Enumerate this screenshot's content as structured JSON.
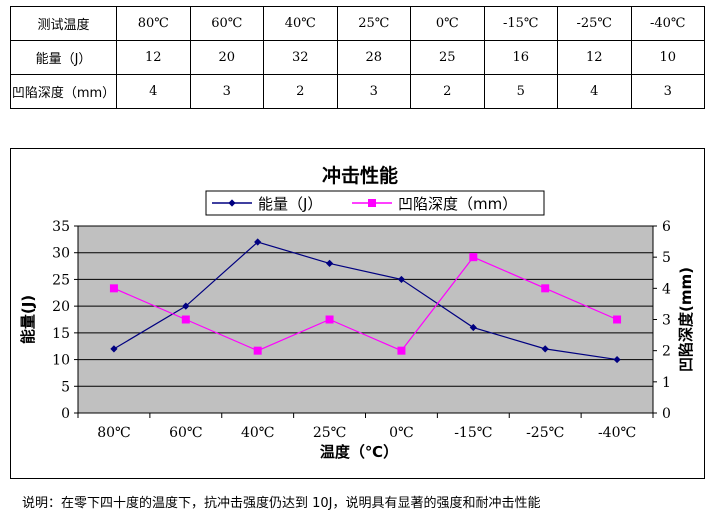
{
  "table": {
    "header": [
      "测试温度",
      "80℃",
      "60℃",
      "40℃",
      "25℃",
      "0℃",
      "-15℃",
      "-25℃",
      "-40℃"
    ],
    "rows": [
      [
        "能量（J）",
        "12",
        "20",
        "32",
        "28",
        "25",
        "16",
        "12",
        "10"
      ],
      [
        "凹陷深度（mm）",
        "4",
        "3",
        "2",
        "3",
        "2",
        "5",
        "4",
        "3"
      ]
    ]
  },
  "chart_data": {
    "type": "line",
    "title": "冲击性能",
    "xlabel": "温度（℃）",
    "ylabel_left": "能量(J)",
    "ylabel_right": "凹陷深度(mm)",
    "categories": [
      "80℃",
      "60℃",
      "40℃",
      "25℃",
      "0℃",
      "-15℃",
      "-25℃",
      "-40℃"
    ],
    "y_left": {
      "min": 0,
      "max": 35,
      "ticks": [
        "0",
        "5",
        "10",
        "15",
        "20",
        "25",
        "30",
        "35"
      ]
    },
    "y_right": {
      "min": 0,
      "max": 6,
      "ticks": [
        "0",
        "1",
        "2",
        "3",
        "4",
        "5",
        "6"
      ]
    },
    "grid": true,
    "legend_position": "top",
    "plot_background": "#c0c0c0",
    "series": [
      {
        "name": "能量（J）",
        "axis": "left",
        "color": "#000080",
        "marker": "diamond",
        "values": [
          12,
          20,
          32,
          28,
          25,
          16,
          12,
          10
        ]
      },
      {
        "name": "凹陷深度（mm）",
        "axis": "right",
        "color": "#ff00ff",
        "marker": "square",
        "values": [
          4,
          3,
          2,
          3,
          2,
          5,
          4,
          3
        ]
      }
    ]
  },
  "note": "说明：在零下四十度的温度下，抗冲击强度仍达到 10J，说明具有显著的强度和耐冲击性能"
}
